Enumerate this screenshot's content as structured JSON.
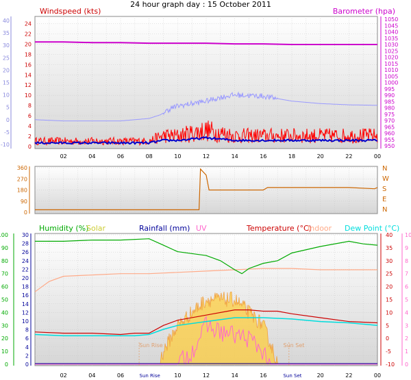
{
  "title": "24 hour graph day : 15 October 2011",
  "colors": {
    "plot_bg_top": "#ffffff",
    "plot_bg_bottom": "#d8d8d8",
    "grid": "#c8c8c8",
    "windspeed": "#ff0000",
    "wind_avg": "#0000cc",
    "temp_series": "#9999ff",
    "barometer": "#cc00cc",
    "direction": "#cc6600",
    "humidity": "#00aa00",
    "solar": "#ffcc33",
    "rainfall": "#000099",
    "uv": "#ff66cc",
    "temperature": "#cc0000",
    "indoor": "#ffaa88",
    "dewpoint": "#00dddd",
    "sun_label": "#e0a070"
  },
  "chart_data": [
    {
      "type": "line",
      "panel": "wind_barometer",
      "ylabel_left": "Windspeed (kts)",
      "ylabel_right": "Barometer (hpa)",
      "left_ticks": [
        "24",
        "22",
        "20",
        "18",
        "16",
        "14",
        "12",
        "10",
        "8",
        "6",
        "4",
        "2",
        "0"
      ],
      "outer_left_ticks": [
        "40",
        "35",
        "30",
        "25",
        "20",
        "15",
        "10",
        "5",
        "0",
        "-5",
        "-10"
      ],
      "right_ticks": [
        "1050",
        "1045",
        "1040",
        "1035",
        "1030",
        "1025",
        "1020",
        "1015",
        "1010",
        "1005",
        "1000",
        "995",
        "990",
        "985",
        "980",
        "975",
        "970",
        "965",
        "960",
        "955",
        "950"
      ],
      "x_ticks": [
        "02",
        "04",
        "06",
        "08",
        "10",
        "12",
        "14",
        "16",
        "18",
        "20",
        "22",
        "00"
      ],
      "series": [
        {
          "name": "Windspeed (kts)",
          "axis": "left",
          "x": [
            0,
            2,
            4,
            6,
            8,
            9,
            10,
            12,
            14,
            16,
            18,
            20,
            22,
            24
          ],
          "y": [
            1,
            1,
            1,
            1,
            1,
            2,
            2,
            3,
            2,
            2,
            2,
            2,
            2,
            2
          ]
        },
        {
          "name": "Barometer (hpa)",
          "axis": "right",
          "x": [
            0,
            2,
            4,
            6,
            8,
            10,
            12,
            14,
            16,
            18,
            20,
            22,
            24
          ],
          "y": [
            1032,
            1032,
            1031.5,
            1031.5,
            1031,
            1031,
            1031,
            1030.5,
            1030.5,
            1030,
            1030,
            1030,
            1030
          ]
        }
      ]
    },
    {
      "type": "line",
      "panel": "wind_direction",
      "left_ticks": [
        "360",
        "270",
        "180",
        "90",
        "0"
      ],
      "right_ticks": [
        "N",
        "W",
        "S",
        "E",
        "N"
      ],
      "series": [
        {
          "name": "Wind direction",
          "x": [
            0,
            2,
            4,
            6,
            8,
            10,
            11.5,
            11.6,
            12,
            12.2,
            14,
            16,
            16.3,
            18,
            20,
            22,
            23.8,
            24
          ],
          "y": [
            20,
            20,
            20,
            20,
            20,
            20,
            20,
            350,
            300,
            180,
            180,
            180,
            200,
            200,
            200,
            200,
            190,
            200
          ]
        }
      ]
    },
    {
      "type": "line",
      "panel": "humidity_temperature",
      "legend": [
        "Humidity (%)",
        "Solar",
        "Rainfall (mm)",
        "UV",
        "Temperature (°C)",
        "Indoor",
        "Dew Point (°C)"
      ],
      "outer_left_ticks": [
        "100",
        "90",
        "80",
        "70",
        "60",
        "50",
        "40",
        "30",
        "20",
        "10",
        "0"
      ],
      "left_ticks": [
        "30",
        "28",
        "26",
        "24",
        "22",
        "20",
        "18",
        "16",
        "14",
        "12",
        "10",
        "8",
        "6",
        "4",
        "2",
        "0"
      ],
      "right_ticks": [
        "40",
        "35",
        "30",
        "25",
        "20",
        "15",
        "10",
        "5",
        "0",
        "-5",
        "-10"
      ],
      "outer_right_ticks": [
        "10",
        "9",
        "8",
        "7",
        "6",
        "5",
        "4",
        "3",
        "2",
        "1",
        "0"
      ],
      "x_ticks": [
        "02",
        "04",
        "06",
        "Sun Rise",
        "10",
        "12",
        "14",
        "16",
        "Sun Set",
        "20",
        "22",
        "00"
      ],
      "annotations": [
        "Sun Rise",
        "Sun Set"
      ],
      "series": [
        {
          "name": "Humidity (%)",
          "x": [
            0,
            2,
            4,
            6,
            8,
            9,
            10,
            12,
            13,
            14,
            14.5,
            15,
            16,
            17,
            18,
            20,
            22,
            23,
            24
          ],
          "y": [
            95,
            95,
            96,
            96,
            97,
            92,
            87,
            84,
            80,
            73,
            70,
            74,
            78,
            80,
            86,
            91,
            95,
            93,
            92
          ]
        },
        {
          "name": "Indoor",
          "x": [
            0,
            1,
            2,
            4,
            6,
            8,
            10,
            12,
            14,
            16,
            18,
            20,
            22,
            24
          ],
          "y": [
            18,
            22,
            24,
            24.5,
            25,
            25,
            25.5,
            26,
            26.5,
            27,
            27,
            26.5,
            26.5,
            26.5
          ]
        },
        {
          "name": "Temperature (°C)",
          "x": [
            0,
            2,
            4,
            6,
            7,
            8,
            9,
            10,
            12,
            14,
            15,
            16,
            17,
            18,
            20,
            22,
            24
          ],
          "y": [
            2.5,
            2,
            2,
            1.5,
            2,
            2,
            5,
            7,
            9,
            11,
            11,
            10.5,
            10.5,
            9.5,
            8,
            6.5,
            6
          ]
        },
        {
          "name": "Dew Point (°C)",
          "x": [
            0,
            2,
            4,
            6,
            7,
            8,
            9,
            10,
            12,
            14,
            16,
            18,
            20,
            22,
            24
          ],
          "y": [
            1.5,
            1,
            1,
            1,
            1,
            1.5,
            3.5,
            5,
            6.5,
            8,
            8,
            7.5,
            6.5,
            6,
            5
          ]
        },
        {
          "name": "Solar",
          "x": [
            0,
            8.7,
            9,
            10,
            11,
            12,
            13,
            14,
            15,
            16,
            16.7,
            17,
            24
          ],
          "y": [
            0,
            0,
            1,
            3,
            4,
            5,
            5,
            5,
            4,
            3,
            1,
            0,
            0
          ]
        }
      ]
    }
  ],
  "panels": {
    "p1": {
      "title": "24 hour graph day : 15 October 2011",
      "ylabel_left": "Windspeed (kts)",
      "ylabel_right": "Barometer (hpa)"
    },
    "p3": {
      "labels": [
        "Humidity (%)",
        "Solar",
        "Rainfall (mm)",
        "UV",
        "Temperature (°C)",
        "Indoor",
        "Dew Point (°C)"
      ]
    }
  }
}
